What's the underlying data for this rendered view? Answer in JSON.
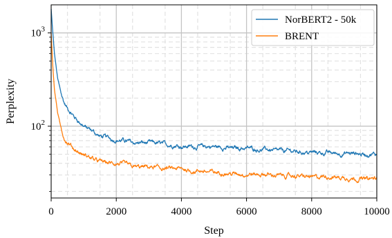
{
  "chart_data": {
    "type": "line",
    "xlabel": "Step",
    "ylabel": "Perplexity",
    "x_scale": "linear",
    "y_scale": "log",
    "xlim": [
      0,
      10000
    ],
    "ylim": [
      17,
      2000
    ],
    "x_ticks": [
      0,
      2000,
      4000,
      6000,
      8000,
      10000
    ],
    "x_tick_labels": [
      "0",
      "2000",
      "4000",
      "6000",
      "8000",
      "10000"
    ],
    "y_ticks": [
      100,
      1000
    ],
    "y_tick_labels": [
      {
        "base": "10",
        "exp": "2"
      },
      {
        "base": "10",
        "exp": "3"
      }
    ],
    "grid": {
      "major": true,
      "minor": true
    },
    "legend": {
      "position": "top-right"
    },
    "series": [
      {
        "name": "NorBERT2 - 50k",
        "color": "#1f77b4",
        "x": [
          0,
          50,
          100,
          200,
          300,
          400,
          500,
          700,
          1000,
          1500,
          2000,
          2500,
          3000,
          3500,
          4000,
          4500,
          5000,
          5500,
          6000,
          6500,
          7000,
          7500,
          8000,
          8500,
          9000,
          9500,
          10000
        ],
        "y": [
          1800,
          1000,
          600,
          320,
          230,
          180,
          155,
          125,
          100,
          77,
          72,
          68,
          66,
          64,
          62,
          61,
          60,
          58,
          59,
          57,
          55,
          54,
          53,
          52,
          51,
          50,
          49
        ]
      },
      {
        "name": "BRENT",
        "color": "#ff7f0e",
        "x": [
          0,
          50,
          100,
          200,
          300,
          400,
          500,
          700,
          1000,
          1500,
          2000,
          2500,
          3000,
          3500,
          4000,
          4500,
          5000,
          5500,
          6000,
          6500,
          7000,
          7500,
          8000,
          8500,
          9000,
          9500,
          10000
        ],
        "y": [
          1000,
          450,
          250,
          140,
          95,
          75,
          66,
          56,
          48,
          42,
          39,
          37,
          36,
          35,
          34,
          33,
          32,
          31,
          30.5,
          30,
          29.5,
          29,
          28.5,
          28.5,
          28,
          27.5,
          27.5
        ]
      }
    ]
  }
}
